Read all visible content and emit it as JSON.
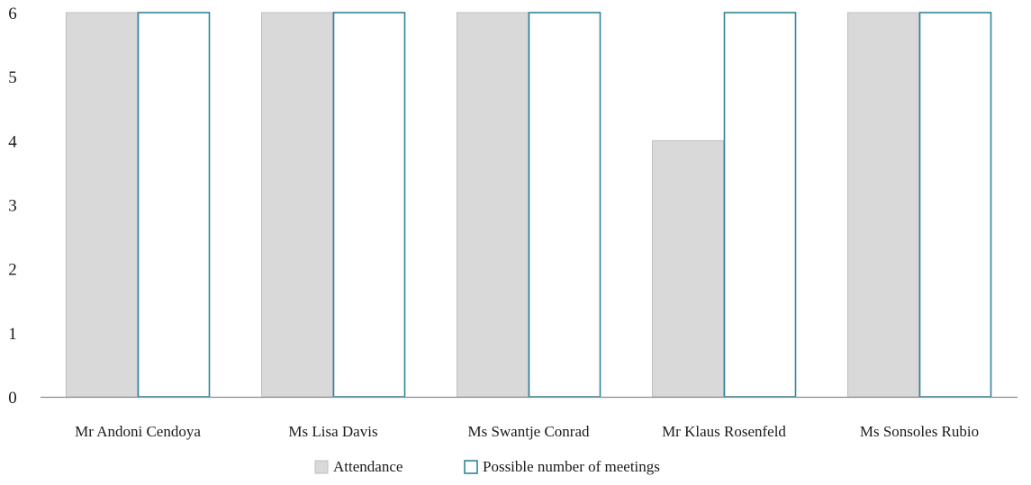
{
  "chart_data": {
    "type": "bar",
    "title": "",
    "xlabel": "",
    "ylabel": "",
    "categories": [
      "Mr Andoni Cendoya",
      "Ms Lisa Davis",
      "Ms Swantje Conrad",
      "Mr Klaus Rosenfeld",
      "Ms Sonsoles Rubio"
    ],
    "series": [
      {
        "name": "Attendance",
        "values": [
          6,
          6,
          6,
          4,
          6
        ],
        "fill": "#d9d9d9",
        "stroke": "#bfbfbf"
      },
      {
        "name": "Possible number of meetings",
        "values": [
          6,
          6,
          6,
          6,
          6
        ],
        "fill": "#ffffff",
        "stroke": "#31849b"
      }
    ],
    "ylim": [
      0,
      6
    ],
    "yticks": [
      0,
      1,
      2,
      3,
      4,
      5,
      6
    ],
    "grid": false,
    "legend": "bottom-center"
  }
}
